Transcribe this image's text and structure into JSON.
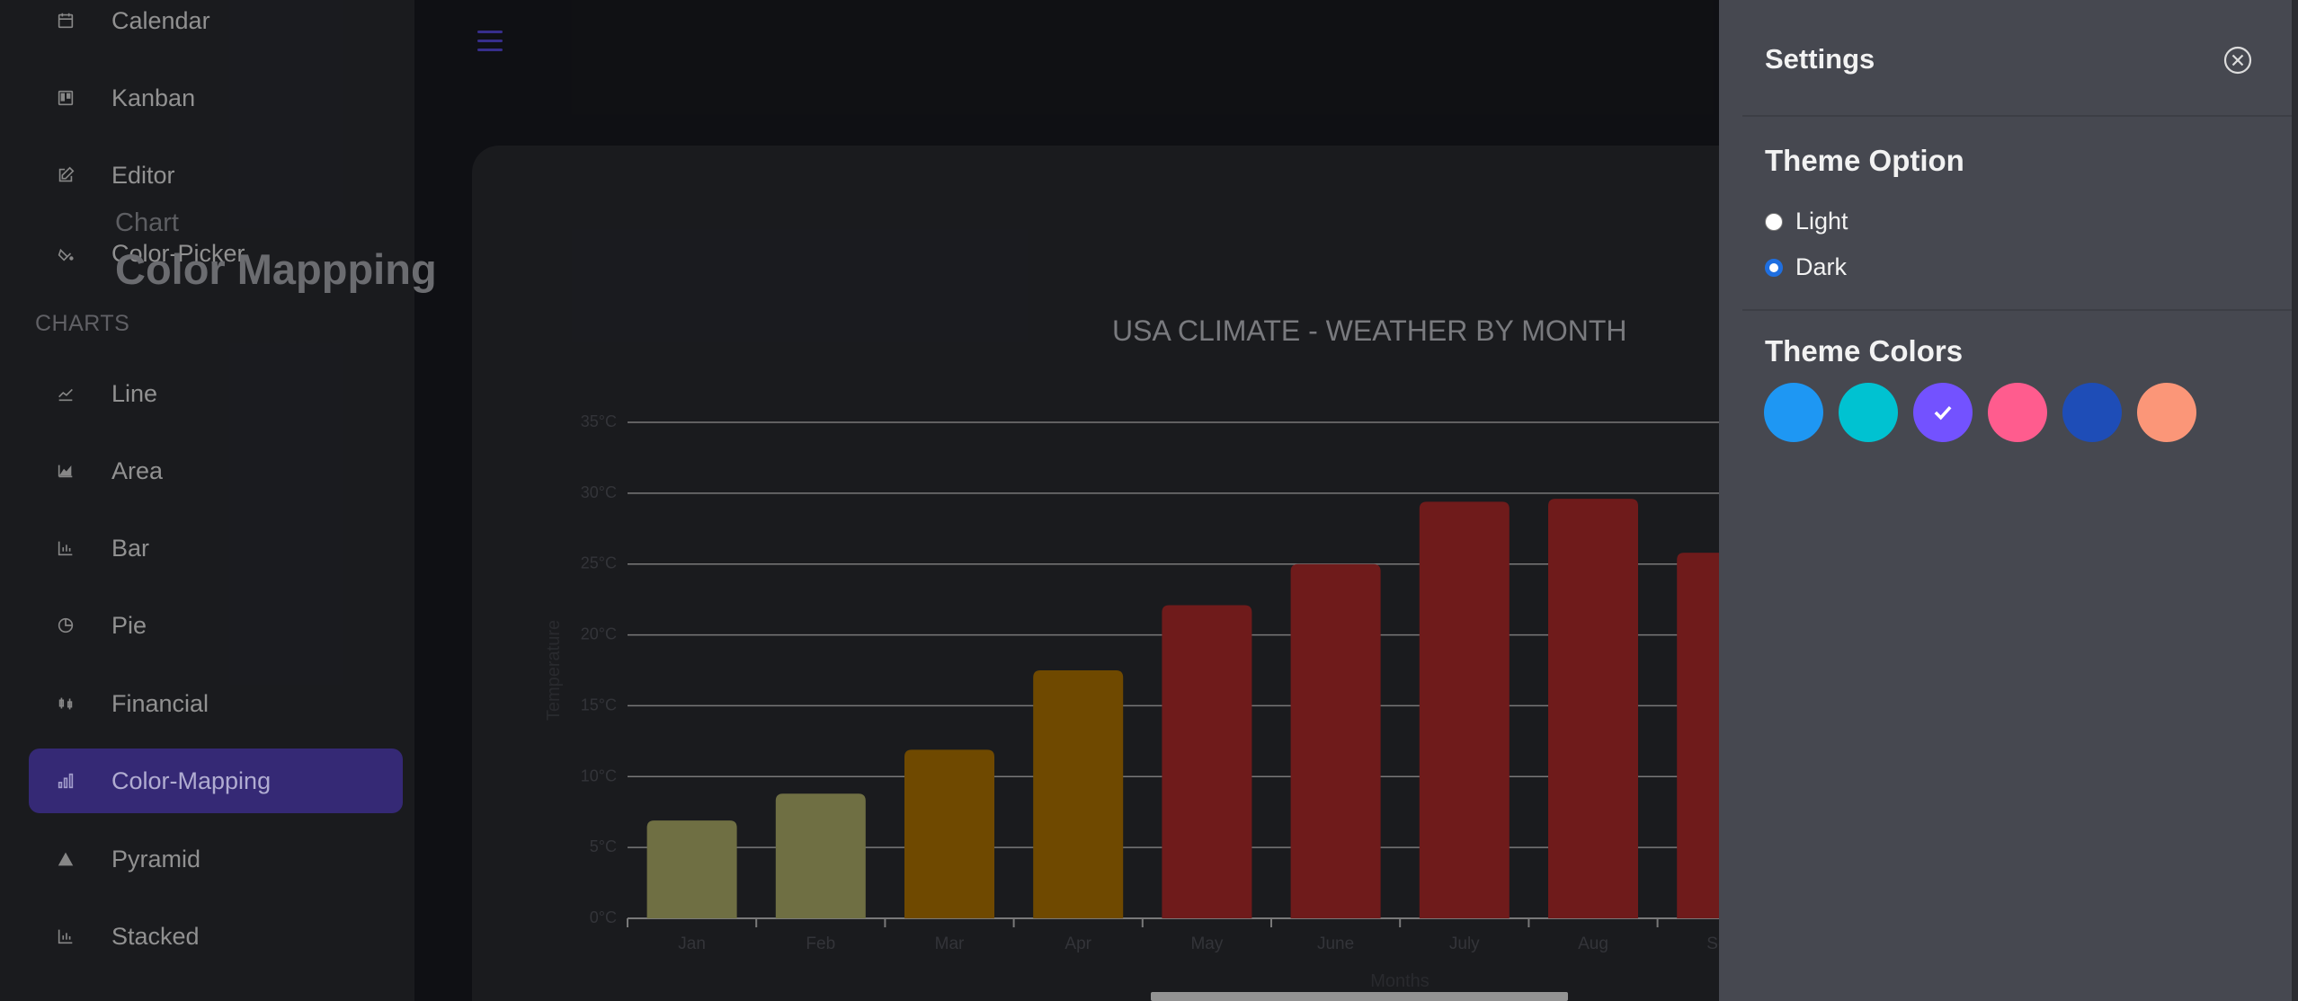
{
  "sidebar": {
    "items": [
      {
        "label": "Calendar",
        "icon": "calendar-icon"
      },
      {
        "label": "Kanban",
        "icon": "kanban-icon"
      },
      {
        "label": "Editor",
        "icon": "editor-icon"
      },
      {
        "label": "Color-Picker",
        "icon": "color-picker-icon"
      }
    ],
    "section_label": "CHARTS",
    "chart_items": [
      {
        "label": "Line",
        "icon": "line-chart-icon"
      },
      {
        "label": "Area",
        "icon": "area-chart-icon"
      },
      {
        "label": "Bar",
        "icon": "bar-chart-icon"
      },
      {
        "label": "Pie",
        "icon": "pie-chart-icon"
      },
      {
        "label": "Financial",
        "icon": "financial-chart-icon"
      },
      {
        "label": "Color-Mapping",
        "icon": "color-mapping-icon"
      },
      {
        "label": "Pyramid",
        "icon": "pyramid-icon"
      },
      {
        "label": "Stacked",
        "icon": "stacked-chart-icon"
      }
    ],
    "active": "Color-Mapping"
  },
  "page": {
    "subtitle": "Chart",
    "title": "Color Mappping"
  },
  "settings": {
    "title": "Settings",
    "theme_option_heading": "Theme Option",
    "options": [
      {
        "label": "Light",
        "checked": false
      },
      {
        "label": "Dark",
        "checked": true
      }
    ],
    "theme_colors_heading": "Theme Colors",
    "colors": [
      "#1e97f3",
      "#00c2d1",
      "#7352ff",
      "#ff5c8e",
      "#1e4db7",
      "#fb9678"
    ],
    "selected_color": "#7352ff"
  },
  "chart_data": {
    "type": "bar",
    "title": "USA CLIMATE - WEATHER BY MONTH",
    "xlabel": "Months",
    "ylabel": "Temperature",
    "categories": [
      "Jan",
      "Feb",
      "Mar",
      "Apr",
      "May",
      "June",
      "July",
      "Aug",
      "Sep"
    ],
    "values": [
      6.9,
      8.8,
      11.9,
      17.5,
      22.1,
      25.0,
      29.4,
      29.6,
      25.8
    ],
    "bar_colors": [
      "#7f7f4d",
      "#7f7f4d",
      "#7f5400",
      "#7f5400",
      "#7f1f1f",
      "#7f1f1f",
      "#7f1f1f",
      "#7f1f1f",
      "#7f1f1f"
    ],
    "ylim": [
      0,
      35
    ],
    "yticks": [
      "0°C",
      "5°C",
      "10°C",
      "15°C",
      "20°C",
      "25°C",
      "30°C",
      "35°C"
    ],
    "grid": true
  }
}
